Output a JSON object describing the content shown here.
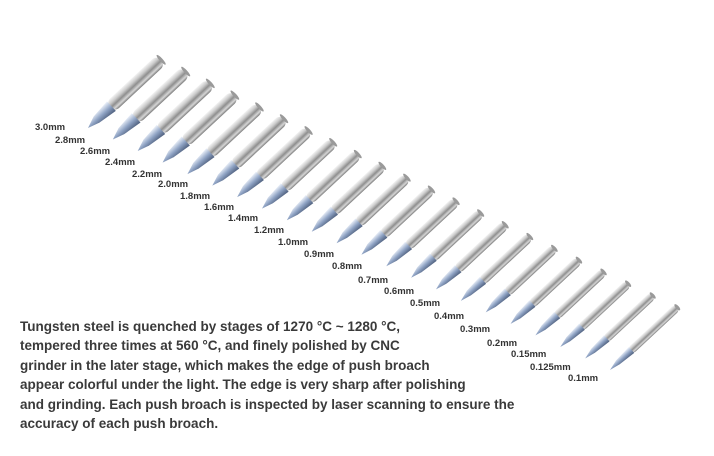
{
  "sizes": [
    "3.0mm",
    "2.8mm",
    "2.6mm",
    "2.4mm",
    "2.2mm",
    "2.0mm",
    "1.8mm",
    "1.6mm",
    "1.4mm",
    "1.2mm",
    "1.0mm",
    "0.9mm",
    "0.8mm",
    "0.7mm",
    "0.6mm",
    "0.5mm",
    "0.4mm",
    "0.3mm",
    "0.2mm",
    "0.15mm",
    "0.125mm",
    "0.1mm"
  ],
  "description": [
    "Tungsten steel is quenched by stages of 1270 °C ~ 1280 °C,",
    "tempered three times at 560 °C, and finely polished by CNC",
    "grinder in the later stage, which makes the edge of push broach",
    "appear colorful under the light. The edge is very sharp after polishing",
    "and grinding. Each push broach is inspected by laser scanning to ensure the",
    "accuracy of each push broach."
  ]
}
